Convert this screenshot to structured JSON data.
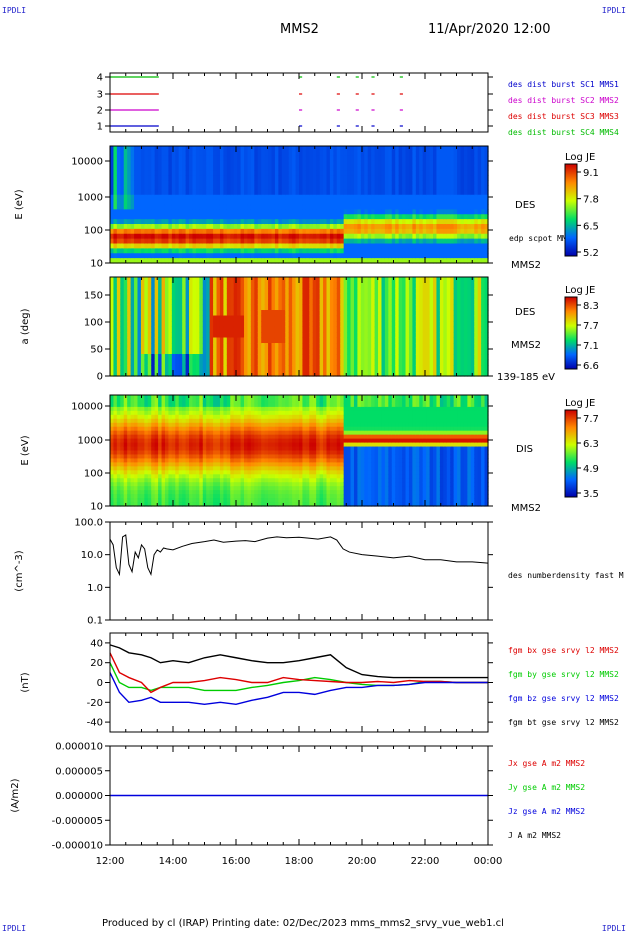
{
  "corners": {
    "tl": "IPDLI",
    "tr": "IPDLI",
    "bl": "IPDLI",
    "br": "IPDLI"
  },
  "header": {
    "title": "MMS2",
    "datetime": "11/Apr/2020 12:00"
  },
  "footer": {
    "text": "Produced by cl (IRAP)   Printing date: 02/Dec/2023   mms_mms2_srvy_vue_web1.cl"
  },
  "x_axis": {
    "ticks": [
      "12:00",
      "14:00",
      "16:00",
      "18:00",
      "20:00",
      "22:00",
      "00:00"
    ]
  },
  "colors": {
    "mms1": "#0000cc",
    "mms2": "#cc00cc",
    "mms3": "#dd0000",
    "mms4": "#00bb00",
    "bx": "#dd0000",
    "by": "#00cc00",
    "bz": "#0000dd",
    "bt": "#000000"
  },
  "chart_data": [
    {
      "type": "timeline",
      "panel": "burst",
      "yticks": [
        "1",
        "2",
        "3",
        "4"
      ],
      "legend": [
        "des dist burst SC1 MMS1",
        "des dist burst SC2 MMS2",
        "des dist burst SC3 MMS3",
        "des dist burst SC4 MMS4"
      ],
      "intervals_hours": [
        [
          12.0,
          13.55
        ],
        [
          18.0,
          18.1
        ],
        [
          19.2,
          19.3
        ],
        [
          19.8,
          19.9
        ],
        [
          20.3,
          20.4
        ],
        [
          21.2,
          21.3
        ]
      ]
    },
    {
      "type": "heatmap",
      "panel": "des_energy",
      "ylabel": "E (eV)",
      "yscale": "log",
      "yticks": [
        "10",
        "100",
        "1000",
        "10000"
      ],
      "label": "DES",
      "sublabel": "MMS2",
      "extra": "edp scpot MMS2",
      "colorbar": {
        "title": "Log JE",
        "ticks": [
          "9.1",
          "7.8",
          "6.5",
          "5.2"
        ]
      }
    },
    {
      "type": "heatmap",
      "panel": "des_pitch",
      "ylabel": "a (deg)",
      "yticks": [
        "0",
        "50",
        "100",
        "150"
      ],
      "ylim": [
        0,
        180
      ],
      "label": "DES",
      "sublabel": "MMS2",
      "extra": "139-185 eV",
      "colorbar": {
        "title": "Log JE",
        "ticks": [
          "8.3",
          "7.7",
          "7.1",
          "6.6"
        ]
      }
    },
    {
      "type": "heatmap",
      "panel": "dis_energy",
      "ylabel": "E (eV)",
      "yscale": "log",
      "yticks": [
        "10",
        "100",
        "1000",
        "10000"
      ],
      "label": "DIS",
      "sublabel": "MMS2",
      "colorbar": {
        "title": "Log JE",
        "ticks": [
          "7.7",
          "6.3",
          "4.9",
          "3.5"
        ]
      }
    },
    {
      "type": "line",
      "panel": "density",
      "ylabel": "(cm^-3)",
      "yscale": "log",
      "ylim": [
        0.1,
        100
      ],
      "yticks": [
        "0.1",
        "1.0",
        "10.0",
        "100.0"
      ],
      "legend": [
        "des numberdensity fast M"
      ],
      "x_hours": [
        12.0,
        12.1,
        12.2,
        12.3,
        12.4,
        12.5,
        12.6,
        12.7,
        12.8,
        12.9,
        13.0,
        13.1,
        13.2,
        13.3,
        13.4,
        13.5,
        13.6,
        13.7,
        13.8,
        14.0,
        14.3,
        14.6,
        15.0,
        15.3,
        15.6,
        16.0,
        16.3,
        16.6,
        17.0,
        17.3,
        17.6,
        18.0,
        18.3,
        18.6,
        19.0,
        19.2,
        19.4,
        19.6,
        20.0,
        20.5,
        21.0,
        21.5,
        22.0,
        22.5,
        23.0,
        23.5,
        24.0
      ],
      "values": [
        30,
        20,
        4,
        2.5,
        35,
        40,
        5,
        3,
        12,
        8,
        20,
        15,
        4,
        2.5,
        10,
        14,
        12,
        16,
        15,
        14,
        18,
        22,
        25,
        28,
        24,
        26,
        27,
        25,
        32,
        35,
        33,
        34,
        32,
        30,
        35,
        28,
        15,
        12,
        10,
        9,
        8,
        9,
        7,
        7,
        6,
        6,
        5.5
      ]
    },
    {
      "type": "line",
      "panel": "magnetic_field",
      "ylabel": "(nT)",
      "ylim": [
        -50,
        50
      ],
      "yticks": [
        "-40",
        "-20",
        "0",
        "20",
        "40"
      ],
      "x_hours": [
        12.0,
        12.3,
        12.6,
        13.0,
        13.3,
        13.6,
        14.0,
        14.5,
        15.0,
        15.5,
        16.0,
        16.5,
        17.0,
        17.5,
        18.0,
        18.5,
        19.0,
        19.5,
        20.0,
        20.5,
        21.0,
        21.5,
        22.0,
        22.5,
        23.0,
        23.5,
        24.0
      ],
      "series": [
        {
          "name": "fgm bx gse srvy l2 MMS2",
          "values": [
            30,
            10,
            5,
            0,
            -10,
            -5,
            0,
            0,
            2,
            5,
            3,
            0,
            0,
            5,
            3,
            2,
            1,
            0,
            0,
            1,
            0,
            2,
            1,
            1,
            0,
            0,
            0
          ]
        },
        {
          "name": "fgm by gse srvy l2 MMS2",
          "values": [
            20,
            0,
            -5,
            -5,
            -8,
            -5,
            -5,
            -5,
            -8,
            -8,
            -8,
            -5,
            -3,
            0,
            2,
            5,
            3,
            0,
            -2,
            -3,
            -3,
            -2,
            1,
            1,
            0,
            0,
            0
          ]
        },
        {
          "name": "fgm bz gse srvy l2 MMS2",
          "values": [
            10,
            -10,
            -20,
            -18,
            -15,
            -20,
            -20,
            -20,
            -22,
            -20,
            -22,
            -18,
            -15,
            -10,
            -10,
            -12,
            -8,
            -5,
            -5,
            -3,
            -3,
            -2,
            0,
            0,
            0,
            0,
            0
          ]
        },
        {
          "name": "fgm bt gse srvy l2 MMS2",
          "values": [
            38,
            35,
            30,
            28,
            25,
            20,
            22,
            20,
            25,
            28,
            25,
            22,
            20,
            20,
            22,
            25,
            28,
            15,
            8,
            6,
            5,
            5,
            5,
            5,
            5,
            5,
            5
          ]
        }
      ]
    },
    {
      "type": "line",
      "panel": "current_density",
      "ylabel": "(A/m2)",
      "ylim": [
        -1e-05,
        1e-05
      ],
      "yticks": [
        "-0.000010",
        "-0.000005",
        "0.000000",
        "0.000005",
        "0.000010"
      ],
      "series": [
        {
          "name": "Jx gse A m2 MMS2",
          "values": [
            0,
            0
          ]
        },
        {
          "name": "Jy gse A m2 MMS2",
          "values": [
            0,
            0
          ]
        },
        {
          "name": "Jz gse A m2 MMS2",
          "values": [
            0,
            0
          ]
        },
        {
          "name": "J A m2 MMS2",
          "values": [
            0,
            0
          ]
        }
      ]
    }
  ]
}
